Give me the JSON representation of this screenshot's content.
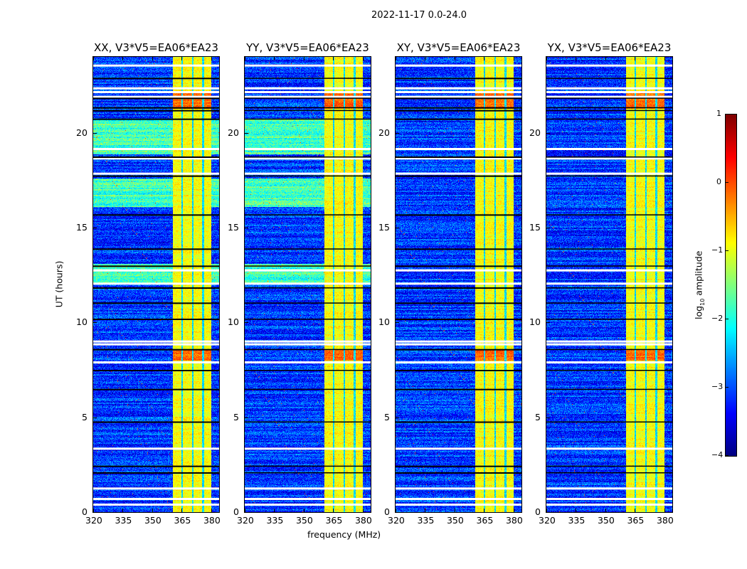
{
  "chart_data": {
    "type": "heatmap",
    "title": "2022-11-17 0.0-24.0",
    "xlabel": "frequency (MHz)",
    "ylabel": "UT (hours)",
    "xlim": [
      320,
      384
    ],
    "ylim": [
      0,
      24
    ],
    "xticks": [
      "320",
      "335",
      "350",
      "365",
      "380"
    ],
    "xtick_values": [
      320,
      335,
      350,
      365,
      380
    ],
    "yticks": [
      "0",
      "5",
      "10",
      "15",
      "20"
    ],
    "ytick_values": [
      0,
      5,
      10,
      15,
      20
    ],
    "panels": [
      {
        "title": "XX, V3*V5=EA06*EA23",
        "parallel": true
      },
      {
        "title": "YY, V3*V5=EA06*EA23",
        "parallel": true
      },
      {
        "title": "XY, V3*V5=EA06*EA23",
        "parallel": false
      },
      {
        "title": "YX, V3*V5=EA06*EA23",
        "parallel": false
      }
    ],
    "rfi_band_mhz": [
      360.4,
      380
    ],
    "rfi_band_gaps_mhz": [
      365.1,
      370.5,
      375.6
    ],
    "flagged_hours_white": [
      23.6,
      22.4,
      22.2,
      21.95,
      19.2,
      18.7,
      17.9,
      12.8,
      12.1,
      9.05,
      8.9,
      7.95,
      3.4,
      1.3,
      0.75,
      0.45
    ],
    "flagged_hours_black": [
      22.9,
      21.85,
      21.35,
      21.2,
      20.75,
      18.75,
      17.75,
      15.7,
      13.9,
      13.0,
      11.85,
      11.05,
      10.2,
      8.6,
      7.5,
      6.5,
      4.78,
      2.45,
      2.1
    ],
    "high_amplitude_hours_parallel": [
      [
        18.9,
        20.7
      ],
      [
        16.1,
        17.6
      ],
      [
        12.1,
        13.1
      ]
    ],
    "strong_rfi_hours": [
      [
        21.3,
        22.2
      ],
      [
        8.0,
        8.6
      ]
    ],
    "colorbar": {
      "label": "log10 amplitude",
      "label_main": "log",
      "label_sub": "10",
      "label_tail": " amplitude",
      "range": [
        -4,
        1
      ],
      "ticks": [
        "1",
        "0",
        "−1",
        "−2",
        "−3",
        "−4"
      ],
      "tick_values": [
        1,
        0,
        -1,
        -2,
        -3,
        -4
      ],
      "colormap": "jet"
    }
  }
}
